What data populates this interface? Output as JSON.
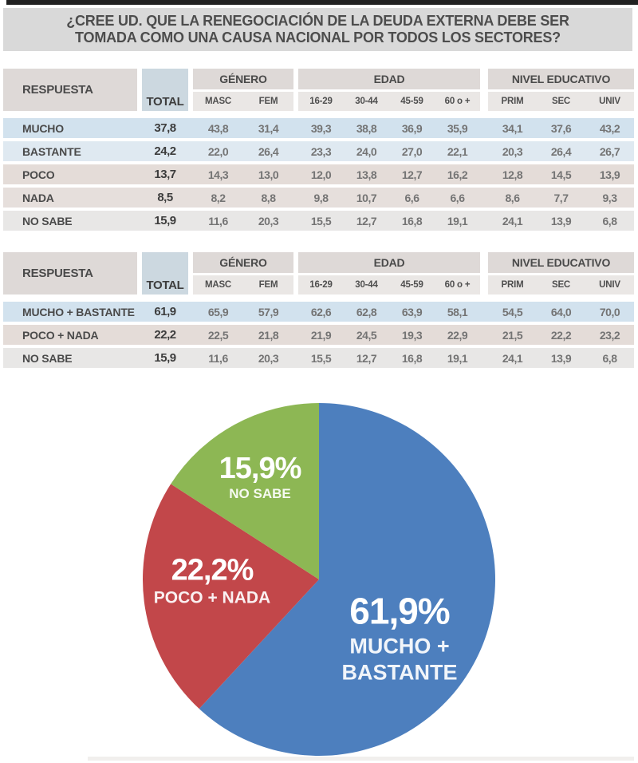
{
  "title": {
    "line1": "¿CREE UD. QUE LA RENEGOCIACIÓN DE LA DEUDA EXTERNA DEBE SER",
    "line2": "TOMADA COMO UNA CAUSA NACIONAL POR TODOS LOS SECTORES?"
  },
  "chart_data": [
    {
      "type": "table",
      "name": "respuestas-detalle",
      "col_label": "RESPUESTA",
      "total_label": "TOTAL",
      "groups": [
        {
          "label": "GÉNERO",
          "cols": [
            "MASC",
            "FEM"
          ]
        },
        {
          "label": "EDAD",
          "cols": [
            "16-29",
            "30-44",
            "45-59",
            "60 o +"
          ]
        },
        {
          "label": "NIVEL EDUCATIVO",
          "cols": [
            "PRIM",
            "SEC",
            "UNIV"
          ]
        }
      ],
      "rows": [
        {
          "label": "MUCHO",
          "total": "37,8",
          "values": [
            "43,8",
            "31,4",
            "39,3",
            "38,8",
            "36,9",
            "35,9",
            "34,1",
            "37,6",
            "43,2"
          ]
        },
        {
          "label": "BASTANTE",
          "total": "24,2",
          "values": [
            "22,0",
            "26,4",
            "23,3",
            "24,0",
            "27,0",
            "22,1",
            "20,3",
            "26,4",
            "26,7"
          ]
        },
        {
          "label": "POCO",
          "total": "13,7",
          "values": [
            "14,3",
            "13,0",
            "12,0",
            "13,8",
            "12,7",
            "16,2",
            "12,8",
            "14,5",
            "13,9"
          ]
        },
        {
          "label": "NADA",
          "total": "8,5",
          "values": [
            "8,2",
            "8,8",
            "9,8",
            "10,7",
            "6,6",
            "6,6",
            "8,6",
            "7,7",
            "9,3"
          ]
        },
        {
          "label": "NO SABE",
          "total": "15,9",
          "values": [
            "11,6",
            "20,3",
            "15,5",
            "12,7",
            "16,8",
            "19,1",
            "24,1",
            "13,9",
            "6,8"
          ]
        }
      ],
      "row_colors": [
        "#d2e2ee",
        "#dfe9f1",
        "#e4dcd8",
        "#e6dfdc",
        "#e8e7e6"
      ]
    },
    {
      "type": "table",
      "name": "respuestas-agrupadas",
      "col_label": "RESPUESTA",
      "total_label": "TOTAL",
      "groups": [
        {
          "label": "GÉNERO",
          "cols": [
            "MASC",
            "FEM"
          ]
        },
        {
          "label": "EDAD",
          "cols": [
            "16-29",
            "30-44",
            "45-59",
            "60 o +"
          ]
        },
        {
          "label": "NIVEL EDUCATIVO",
          "cols": [
            "PRIM",
            "SEC",
            "UNIV"
          ]
        }
      ],
      "rows": [
        {
          "label": "MUCHO + BASTANTE",
          "total": "61,9",
          "values": [
            "65,9",
            "57,9",
            "62,6",
            "62,8",
            "63,9",
            "58,1",
            "54,5",
            "64,0",
            "70,0"
          ]
        },
        {
          "label": "POCO + NADA",
          "total": "22,2",
          "values": [
            "22,5",
            "21,8",
            "21,9",
            "24,5",
            "19,3",
            "22,9",
            "21,5",
            "22,2",
            "23,2"
          ]
        },
        {
          "label": "NO SABE",
          "total": "15,9",
          "values": [
            "11,6",
            "20,3",
            "15,5",
            "12,7",
            "16,8",
            "19,1",
            "24,1",
            "13,9",
            "6,8"
          ]
        }
      ],
      "row_colors": [
        "#d2e2ee",
        "#e4dcd8",
        "#e8e7e6"
      ]
    },
    {
      "type": "pie",
      "start_angle_deg": 0,
      "direction": "clockwise",
      "slices": [
        {
          "label": "MUCHO + BASTANTE",
          "pct_label": "61,9%",
          "value": 61.9,
          "color": "#4d7fbe"
        },
        {
          "label": "POCO + NADA",
          "pct_label": "22,2%",
          "value": 22.2,
          "color": "#c2474a"
        },
        {
          "label": "NO SABE",
          "pct_label": "15,9%",
          "value": 15.9,
          "color": "#8db754"
        }
      ]
    }
  ],
  "colors": {
    "title_bar_bg": "#d9d9d9",
    "header_box_bg": "#ded9d7",
    "total_box_bg": "#ccd8e0",
    "pie_blue": "#4d7fbe",
    "pie_red": "#c2474a",
    "pie_green": "#8db754"
  }
}
